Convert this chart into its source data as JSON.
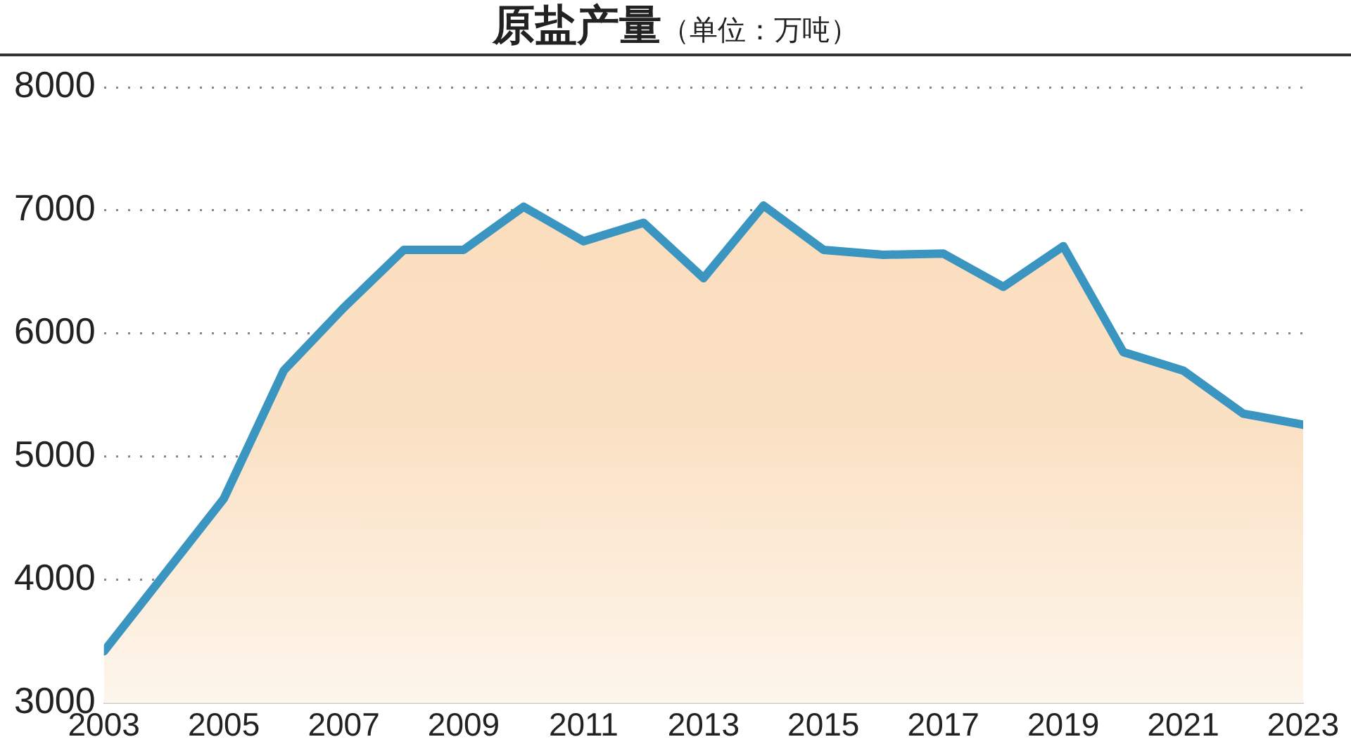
{
  "chart_data": {
    "type": "area",
    "title": "原盐产量",
    "subtitle": "（单位：万吨）",
    "x": [
      2003,
      2004,
      2005,
      2006,
      2007,
      2008,
      2009,
      2010,
      2011,
      2012,
      2013,
      2014,
      2015,
      2016,
      2017,
      2018,
      2019,
      2020,
      2021,
      2022,
      2023
    ],
    "series": [
      {
        "color": "#3a95c0",
        "values": [
          3420,
          4040,
          4660,
          5700,
          6210,
          6680,
          6680,
          7030,
          6750,
          6900,
          6450,
          7040,
          6680,
          6640,
          6650,
          6380,
          6710,
          5850,
          5700,
          5350,
          5260
        ]
      }
    ],
    "xlim": [
      2003,
      2023
    ],
    "xticks": [
      2003,
      2005,
      2007,
      2009,
      2011,
      2013,
      2015,
      2017,
      2019,
      2021,
      2023
    ],
    "ylim": [
      3000,
      8000
    ],
    "yticks": [
      3000,
      4000,
      5000,
      6000,
      7000,
      8000
    ],
    "grid": "y",
    "legend": false,
    "marker": "none",
    "line_style": "solid"
  }
}
